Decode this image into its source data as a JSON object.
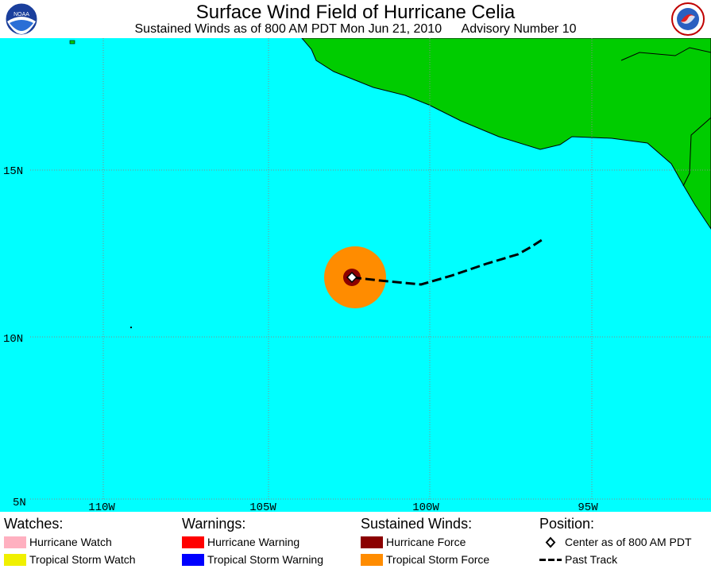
{
  "header": {
    "title": "Surface Wind Field of Hurricane Celia",
    "time_line": "Sustained Winds as of 800 AM PDT Mon Jun 21, 2010",
    "advisory": "Advisory Number 10"
  },
  "logos": {
    "left": "noaa-logo",
    "right": "nws-logo"
  },
  "map": {
    "ocean_color": "#00FFFF",
    "land_color": "#00CC00",
    "grid_color": "#888888",
    "lon_labels": [
      "110W",
      "105W",
      "100W",
      "95W"
    ],
    "lat_labels": [
      "15N",
      "10N",
      "5N"
    ],
    "center_lat": 11.8,
    "center_lon": -102.3,
    "past_track": [
      [
        -102.3,
        11.8
      ],
      [
        -101.5,
        11.7
      ],
      [
        -100.2,
        11.6
      ],
      [
        -99.2,
        11.8
      ],
      [
        -98.0,
        12.2
      ],
      [
        -97.1,
        12.5
      ],
      [
        -96.6,
        12.9
      ]
    ]
  },
  "legend": {
    "watches": {
      "heading": "Watches:",
      "items": [
        {
          "label": "Hurricane Watch",
          "color": "#FFB0C0"
        },
        {
          "label": "Tropical Storm Watch",
          "color": "#F0F000"
        }
      ]
    },
    "warnings": {
      "heading": "Warnings:",
      "items": [
        {
          "label": "Hurricane Warning",
          "color": "#FF0000"
        },
        {
          "label": "Tropical Storm Warning",
          "color": "#0000FF"
        }
      ]
    },
    "winds": {
      "heading": "Sustained Winds:",
      "items": [
        {
          "label": "Hurricane Force",
          "color": "#8B0000"
        },
        {
          "label": "Tropical Storm Force",
          "color": "#FF8C00"
        }
      ]
    },
    "position": {
      "heading": "Position:",
      "items": [
        {
          "label": "Center as of 800 AM PDT",
          "icon": "diamond-icon"
        },
        {
          "label": "Past Track",
          "icon": "dashed-line-icon"
        }
      ]
    }
  }
}
